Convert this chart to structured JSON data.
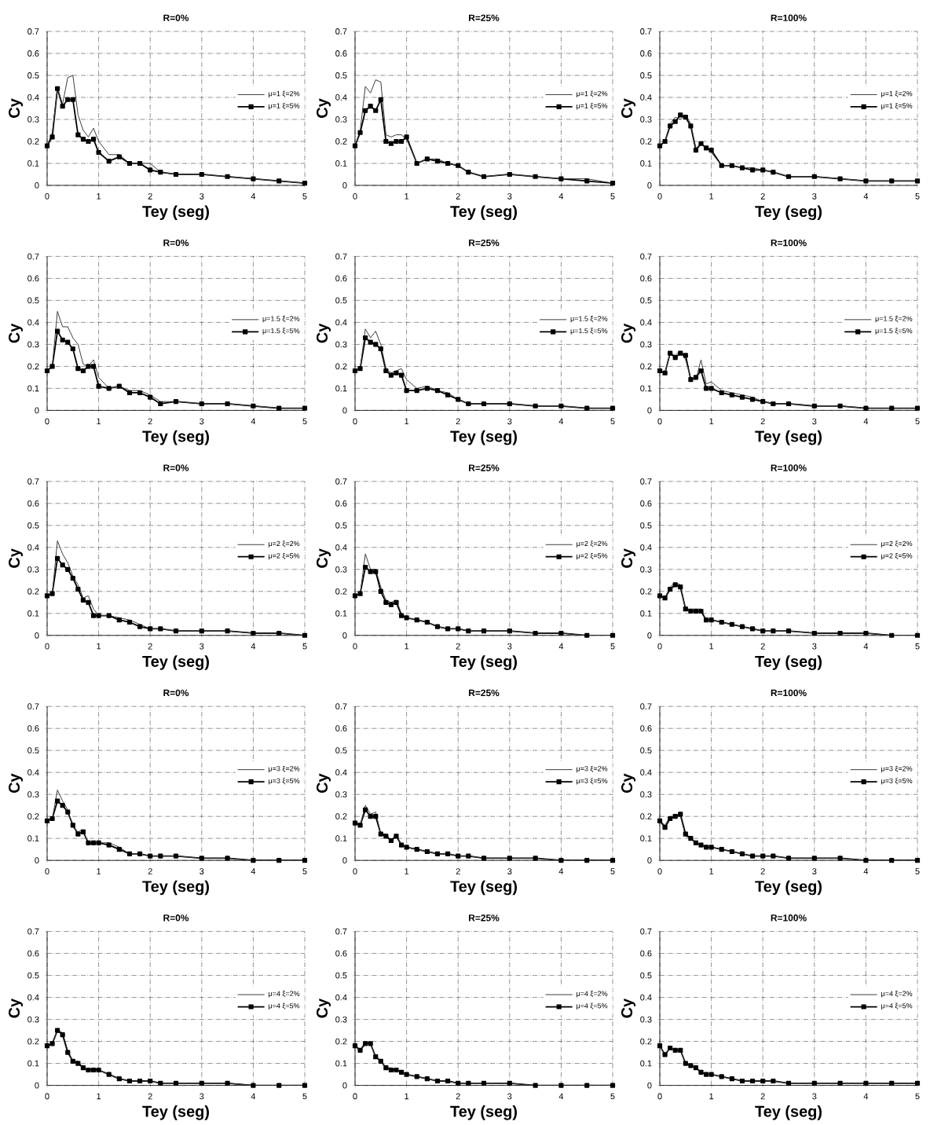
{
  "chart_data": [
    {
      "type": "line",
      "title": "R=0%",
      "xlabel": "Tey (seg)",
      "ylabel": "Cy",
      "xlim": [
        0,
        5
      ],
      "ylim": [
        0,
        0.7
      ],
      "xticks": [
        0,
        1,
        2,
        3,
        4,
        5
      ],
      "yticks": [
        0,
        0.1,
        0.2,
        0.3,
        0.4,
        0.5,
        0.6,
        0.7
      ],
      "grid": true,
      "legend": "right",
      "x": [
        0,
        0.1,
        0.2,
        0.3,
        0.4,
        0.5,
        0.6,
        0.7,
        0.8,
        0.9,
        1.0,
        1.2,
        1.4,
        1.6,
        1.8,
        2.0,
        2.2,
        2.5,
        3.0,
        3.5,
        4.0,
        4.5,
        5.0
      ],
      "series": [
        {
          "name": "μ=1 ξ=2%",
          "color": "#3c3c3c",
          "marker": "none",
          "values": [
            0.18,
            0.24,
            0.44,
            0.37,
            0.49,
            0.5,
            0.32,
            0.25,
            0.22,
            0.26,
            0.2,
            0.14,
            0.14,
            0.1,
            0.1,
            0.1,
            0.06,
            0.05,
            0.05,
            0.04,
            0.03,
            0.02,
            0.01
          ]
        },
        {
          "name": "μ=1 ξ=5%",
          "color": "#000000",
          "marker": "square",
          "values": [
            0.18,
            0.22,
            0.44,
            0.36,
            0.39,
            0.39,
            0.23,
            0.21,
            0.2,
            0.21,
            0.15,
            0.11,
            0.13,
            0.1,
            0.1,
            0.07,
            0.06,
            0.05,
            0.05,
            0.04,
            0.03,
            0.02,
            0.01
          ]
        }
      ]
    },
    {
      "type": "line",
      "title": "R=25%",
      "xlabel": "Tey (seg)",
      "ylabel": "Cy",
      "xlim": [
        0,
        5
      ],
      "ylim": [
        0,
        0.7
      ],
      "xticks": [
        0,
        1,
        2,
        3,
        4,
        5
      ],
      "yticks": [
        0,
        0.1,
        0.2,
        0.3,
        0.4,
        0.5,
        0.6,
        0.7
      ],
      "grid": true,
      "legend": "right",
      "x": [
        0,
        0.1,
        0.2,
        0.3,
        0.4,
        0.5,
        0.6,
        0.7,
        0.8,
        0.9,
        1.0,
        1.2,
        1.4,
        1.6,
        1.8,
        2.0,
        2.2,
        2.5,
        3.0,
        3.5,
        4.0,
        4.5,
        5.0
      ],
      "series": [
        {
          "name": "μ=1 ξ=2%",
          "color": "#3c3c3c",
          "marker": "none",
          "values": [
            0.18,
            0.25,
            0.45,
            0.42,
            0.48,
            0.47,
            0.23,
            0.22,
            0.23,
            0.23,
            0.21,
            0.1,
            0.12,
            0.12,
            0.1,
            0.09,
            0.06,
            0.04,
            0.05,
            0.04,
            0.03,
            0.03,
            0.01
          ]
        },
        {
          "name": "μ=1 ξ=5%",
          "color": "#000000",
          "marker": "square",
          "values": [
            0.18,
            0.24,
            0.34,
            0.36,
            0.34,
            0.39,
            0.2,
            0.19,
            0.2,
            0.2,
            0.22,
            0.1,
            0.12,
            0.11,
            0.1,
            0.09,
            0.06,
            0.04,
            0.05,
            0.04,
            0.03,
            0.02,
            0.01
          ]
        }
      ]
    },
    {
      "type": "line",
      "title": "R=100%",
      "xlabel": "Tey (seg)",
      "ylabel": "Cy",
      "xlim": [
        0,
        5
      ],
      "ylim": [
        0,
        0.7
      ],
      "xticks": [
        0,
        1,
        2,
        3,
        4,
        5
      ],
      "yticks": [
        0,
        0.1,
        0.2,
        0.3,
        0.4,
        0.5,
        0.6,
        0.7
      ],
      "grid": true,
      "legend": "right",
      "x": [
        0,
        0.1,
        0.2,
        0.3,
        0.4,
        0.5,
        0.6,
        0.7,
        0.8,
        0.9,
        1.0,
        1.2,
        1.4,
        1.6,
        1.8,
        2.0,
        2.2,
        2.5,
        3.0,
        3.5,
        4.0,
        4.5,
        5.0
      ],
      "series": [
        {
          "name": "μ=1 ξ=2%",
          "color": "#3c3c3c",
          "marker": "none",
          "values": [
            0.18,
            0.2,
            0.28,
            0.31,
            0.3,
            0.32,
            0.28,
            0.17,
            0.19,
            0.17,
            0.15,
            0.09,
            0.09,
            0.08,
            0.08,
            0.07,
            0.06,
            0.04,
            0.04,
            0.03,
            0.02,
            0.02,
            0.02
          ]
        },
        {
          "name": "μ=1 ξ=5%",
          "color": "#000000",
          "marker": "square",
          "values": [
            0.18,
            0.2,
            0.27,
            0.29,
            0.32,
            0.31,
            0.27,
            0.16,
            0.19,
            0.17,
            0.16,
            0.09,
            0.09,
            0.08,
            0.07,
            0.07,
            0.06,
            0.04,
            0.04,
            0.03,
            0.02,
            0.02,
            0.02
          ]
        }
      ]
    },
    {
      "type": "line",
      "title": "R=0%",
      "xlabel": "Tey (seg)",
      "ylabel": "Cy",
      "xlim": [
        0,
        5
      ],
      "ylim": [
        0,
        0.7
      ],
      "xticks": [
        0,
        1,
        2,
        3,
        4,
        5
      ],
      "yticks": [
        0,
        0.1,
        0.2,
        0.3,
        0.4,
        0.5,
        0.6,
        0.7
      ],
      "grid": true,
      "legend": "right",
      "x": [
        0,
        0.1,
        0.2,
        0.3,
        0.4,
        0.5,
        0.6,
        0.7,
        0.8,
        0.9,
        1.0,
        1.2,
        1.4,
        1.6,
        1.8,
        2.0,
        2.2,
        2.5,
        3.0,
        3.5,
        4.0,
        4.5,
        5.0
      ],
      "series": [
        {
          "name": "μ=1.5 ξ=2%",
          "color": "#3c3c3c",
          "marker": "none",
          "values": [
            0.18,
            0.2,
            0.45,
            0.38,
            0.38,
            0.33,
            0.3,
            0.21,
            0.2,
            0.23,
            0.15,
            0.1,
            0.11,
            0.09,
            0.09,
            0.07,
            0.04,
            0.04,
            0.03,
            0.03,
            0.02,
            0.01,
            0.01
          ]
        },
        {
          "name": "μ=1.5 ξ=5%",
          "color": "#000000",
          "marker": "square",
          "values": [
            0.18,
            0.2,
            0.36,
            0.32,
            0.31,
            0.28,
            0.19,
            0.18,
            0.2,
            0.2,
            0.11,
            0.1,
            0.11,
            0.08,
            0.08,
            0.06,
            0.03,
            0.04,
            0.03,
            0.03,
            0.02,
            0.01,
            0.01
          ]
        }
      ]
    },
    {
      "type": "line",
      "title": "R=25%",
      "xlabel": "Tey (seg)",
      "ylabel": "Cy",
      "xlim": [
        0,
        5
      ],
      "ylim": [
        0,
        0.7
      ],
      "xticks": [
        0,
        1,
        2,
        3,
        4,
        5
      ],
      "yticks": [
        0,
        0.1,
        0.2,
        0.3,
        0.4,
        0.5,
        0.6,
        0.7
      ],
      "grid": true,
      "legend": "right",
      "x": [
        0,
        0.1,
        0.2,
        0.3,
        0.4,
        0.5,
        0.6,
        0.7,
        0.8,
        0.9,
        1.0,
        1.2,
        1.4,
        1.6,
        1.8,
        2.0,
        2.2,
        2.5,
        3.0,
        3.5,
        4.0,
        4.5,
        5.0
      ],
      "series": [
        {
          "name": "μ=1.5 ξ=2%",
          "color": "#3c3c3c",
          "marker": "none",
          "values": [
            0.18,
            0.19,
            0.37,
            0.33,
            0.36,
            0.3,
            0.19,
            0.17,
            0.18,
            0.19,
            0.14,
            0.1,
            0.11,
            0.09,
            0.08,
            0.05,
            0.03,
            0.03,
            0.03,
            0.02,
            0.02,
            0.01,
            0.01
          ]
        },
        {
          "name": "μ=1.5 ξ=5%",
          "color": "#000000",
          "marker": "square",
          "values": [
            0.18,
            0.19,
            0.33,
            0.31,
            0.3,
            0.28,
            0.18,
            0.16,
            0.17,
            0.16,
            0.09,
            0.09,
            0.1,
            0.09,
            0.07,
            0.05,
            0.03,
            0.03,
            0.03,
            0.02,
            0.02,
            0.01,
            0.01
          ]
        }
      ]
    },
    {
      "type": "line",
      "title": "R=100%",
      "xlabel": "Tey (seg)",
      "ylabel": "Cy",
      "xlim": [
        0,
        5
      ],
      "ylim": [
        0,
        0.7
      ],
      "xticks": [
        0,
        1,
        2,
        3,
        4,
        5
      ],
      "yticks": [
        0,
        0.1,
        0.2,
        0.3,
        0.4,
        0.5,
        0.6,
        0.7
      ],
      "grid": true,
      "legend": "right",
      "x": [
        0,
        0.1,
        0.2,
        0.3,
        0.4,
        0.5,
        0.6,
        0.7,
        0.8,
        0.9,
        1.0,
        1.2,
        1.4,
        1.6,
        1.8,
        2.0,
        2.2,
        2.5,
        3.0,
        3.5,
        4.0,
        4.5,
        5.0
      ],
      "series": [
        {
          "name": "μ=1.5 ξ=2%",
          "color": "#3c3c3c",
          "marker": "none",
          "values": [
            0.18,
            0.17,
            0.26,
            0.25,
            0.27,
            0.23,
            0.15,
            0.14,
            0.23,
            0.12,
            0.13,
            0.09,
            0.08,
            0.07,
            0.06,
            0.04,
            0.03,
            0.03,
            0.02,
            0.02,
            0.01,
            0.01,
            0.01
          ]
        },
        {
          "name": "μ=1.5 ξ=5%",
          "color": "#000000",
          "marker": "square",
          "values": [
            0.18,
            0.17,
            0.26,
            0.24,
            0.26,
            0.25,
            0.14,
            0.15,
            0.18,
            0.1,
            0.1,
            0.08,
            0.07,
            0.06,
            0.05,
            0.04,
            0.03,
            0.03,
            0.02,
            0.02,
            0.01,
            0.01,
            0.01
          ]
        }
      ]
    },
    {
      "type": "line",
      "title": "R=0%",
      "xlabel": "Tey (seg)",
      "ylabel": "Cy",
      "xlim": [
        0,
        5
      ],
      "ylim": [
        0,
        0.7
      ],
      "xticks": [
        0,
        1,
        2,
        3,
        4,
        5
      ],
      "yticks": [
        0,
        0.1,
        0.2,
        0.3,
        0.4,
        0.5,
        0.6,
        0.7
      ],
      "grid": true,
      "legend": "right",
      "x": [
        0,
        0.1,
        0.2,
        0.3,
        0.4,
        0.5,
        0.6,
        0.7,
        0.8,
        0.9,
        1.0,
        1.2,
        1.4,
        1.6,
        1.8,
        2.0,
        2.2,
        2.5,
        3.0,
        3.5,
        4.0,
        4.5,
        5.0
      ],
      "series": [
        {
          "name": "μ=2 ξ=2%",
          "color": "#3c3c3c",
          "marker": "none",
          "values": [
            0.18,
            0.19,
            0.43,
            0.37,
            0.33,
            0.27,
            0.23,
            0.17,
            0.18,
            0.12,
            0.09,
            0.09,
            0.08,
            0.07,
            0.05,
            0.03,
            0.03,
            0.02,
            0.02,
            0.02,
            0.01,
            0.01,
            0.0
          ]
        },
        {
          "name": "μ=2 ξ=5%",
          "color": "#000000",
          "marker": "square",
          "values": [
            0.18,
            0.19,
            0.35,
            0.32,
            0.3,
            0.26,
            0.21,
            0.16,
            0.15,
            0.09,
            0.09,
            0.09,
            0.07,
            0.06,
            0.04,
            0.03,
            0.03,
            0.02,
            0.02,
            0.02,
            0.01,
            0.01,
            0.0
          ]
        }
      ]
    },
    {
      "type": "line",
      "title": "R=25%",
      "xlabel": "Tey (seg)",
      "ylabel": "Cy",
      "xlim": [
        0,
        5
      ],
      "ylim": [
        0,
        0.7
      ],
      "xticks": [
        0,
        1,
        2,
        3,
        4,
        5
      ],
      "yticks": [
        0,
        0.1,
        0.2,
        0.3,
        0.4,
        0.5,
        0.6,
        0.7
      ],
      "grid": true,
      "legend": "right",
      "x": [
        0,
        0.1,
        0.2,
        0.3,
        0.4,
        0.5,
        0.6,
        0.7,
        0.8,
        0.9,
        1.0,
        1.2,
        1.4,
        1.6,
        1.8,
        2.0,
        2.2,
        2.5,
        3.0,
        3.5,
        4.0,
        4.5,
        5.0
      ],
      "series": [
        {
          "name": "μ=2 ξ=2%",
          "color": "#3c3c3c",
          "marker": "none",
          "values": [
            0.18,
            0.19,
            0.37,
            0.3,
            0.3,
            0.22,
            0.16,
            0.15,
            0.16,
            0.1,
            0.08,
            0.07,
            0.06,
            0.04,
            0.03,
            0.03,
            0.02,
            0.02,
            0.02,
            0.01,
            0.01,
            0.0,
            0.0
          ]
        },
        {
          "name": "μ=2 ξ=5%",
          "color": "#000000",
          "marker": "square",
          "values": [
            0.18,
            0.19,
            0.31,
            0.29,
            0.29,
            0.2,
            0.15,
            0.14,
            0.15,
            0.09,
            0.08,
            0.07,
            0.06,
            0.04,
            0.03,
            0.03,
            0.02,
            0.02,
            0.02,
            0.01,
            0.01,
            0.0,
            0.0
          ]
        }
      ]
    },
    {
      "type": "line",
      "title": "R=100%",
      "xlabel": "Tey (seg)",
      "ylabel": "Cy",
      "xlim": [
        0,
        5
      ],
      "ylim": [
        0,
        0.7
      ],
      "xticks": [
        0,
        1,
        2,
        3,
        4,
        5
      ],
      "yticks": [
        0,
        0.1,
        0.2,
        0.3,
        0.4,
        0.5,
        0.6,
        0.7
      ],
      "grid": true,
      "legend": "right",
      "x": [
        0,
        0.1,
        0.2,
        0.3,
        0.4,
        0.5,
        0.6,
        0.7,
        0.8,
        0.9,
        1.0,
        1.2,
        1.4,
        1.6,
        1.8,
        2.0,
        2.2,
        2.5,
        3.0,
        3.5,
        4.0,
        4.5,
        5.0
      ],
      "series": [
        {
          "name": "μ=2 ξ=2%",
          "color": "#3c3c3c",
          "marker": "none",
          "values": [
            0.18,
            0.17,
            0.22,
            0.24,
            0.23,
            0.12,
            0.12,
            0.12,
            0.12,
            0.07,
            0.07,
            0.06,
            0.05,
            0.04,
            0.03,
            0.02,
            0.02,
            0.02,
            0.01,
            0.01,
            0.01,
            0.0,
            0.0
          ]
        },
        {
          "name": "μ=2 ξ=5%",
          "color": "#000000",
          "marker": "square",
          "values": [
            0.18,
            0.17,
            0.21,
            0.23,
            0.22,
            0.12,
            0.11,
            0.11,
            0.11,
            0.07,
            0.07,
            0.06,
            0.05,
            0.04,
            0.03,
            0.02,
            0.02,
            0.02,
            0.01,
            0.01,
            0.01,
            0.0,
            0.0
          ]
        }
      ]
    },
    {
      "type": "line",
      "title": "R=0%",
      "xlabel": "Tey (seg)",
      "ylabel": "Cy",
      "xlim": [
        0,
        5
      ],
      "ylim": [
        0,
        0.7
      ],
      "xticks": [
        0,
        1,
        2,
        3,
        4,
        5
      ],
      "yticks": [
        0,
        0.1,
        0.2,
        0.3,
        0.4,
        0.5,
        0.6,
        0.7
      ],
      "grid": true,
      "legend": "right",
      "x": [
        0,
        0.1,
        0.2,
        0.3,
        0.4,
        0.5,
        0.6,
        0.7,
        0.8,
        0.9,
        1.0,
        1.2,
        1.4,
        1.6,
        1.8,
        2.0,
        2.2,
        2.5,
        3.0,
        3.5,
        4.0,
        4.5,
        5.0
      ],
      "series": [
        {
          "name": "μ=3 ξ=2%",
          "color": "#3c3c3c",
          "marker": "none",
          "values": [
            0.18,
            0.19,
            0.32,
            0.27,
            0.23,
            0.15,
            0.13,
            0.14,
            0.07,
            0.08,
            0.08,
            0.08,
            0.06,
            0.03,
            0.03,
            0.02,
            0.02,
            0.02,
            0.01,
            0.01,
            0.0,
            0.0,
            0.0
          ]
        },
        {
          "name": "μ=3 ξ=5%",
          "color": "#000000",
          "marker": "square",
          "values": [
            0.18,
            0.19,
            0.27,
            0.25,
            0.22,
            0.16,
            0.12,
            0.13,
            0.08,
            0.08,
            0.08,
            0.07,
            0.05,
            0.03,
            0.03,
            0.02,
            0.02,
            0.02,
            0.01,
            0.01,
            0.0,
            0.0,
            0.0
          ]
        }
      ]
    },
    {
      "type": "line",
      "title": "R=25%",
      "xlabel": "Tey (seg)",
      "ylabel": "Cy",
      "xlim": [
        0,
        5
      ],
      "ylim": [
        0,
        0.7
      ],
      "xticks": [
        0,
        1,
        2,
        3,
        4,
        5
      ],
      "yticks": [
        0,
        0.1,
        0.2,
        0.3,
        0.4,
        0.5,
        0.6,
        0.7
      ],
      "grid": true,
      "legend": "right",
      "x": [
        0,
        0.1,
        0.2,
        0.3,
        0.4,
        0.5,
        0.6,
        0.7,
        0.8,
        0.9,
        1.0,
        1.2,
        1.4,
        1.6,
        1.8,
        2.0,
        2.2,
        2.5,
        3.0,
        3.5,
        4.0,
        4.5,
        5.0
      ],
      "series": [
        {
          "name": "μ=3 ξ=2%",
          "color": "#3c3c3c",
          "marker": "none",
          "values": [
            0.18,
            0.16,
            0.25,
            0.21,
            0.22,
            0.12,
            0.12,
            0.09,
            0.12,
            0.07,
            0.06,
            0.05,
            0.04,
            0.03,
            0.03,
            0.02,
            0.02,
            0.01,
            0.01,
            0.01,
            0.0,
            0.0,
            0.0
          ]
        },
        {
          "name": "μ=3 ξ=5%",
          "color": "#000000",
          "marker": "square",
          "values": [
            0.17,
            0.16,
            0.23,
            0.2,
            0.2,
            0.12,
            0.11,
            0.09,
            0.11,
            0.07,
            0.06,
            0.05,
            0.04,
            0.03,
            0.03,
            0.02,
            0.02,
            0.01,
            0.01,
            0.01,
            0.0,
            0.0,
            0.0
          ]
        }
      ]
    },
    {
      "type": "line",
      "title": "R=100%",
      "xlabel": "Tey (seg)",
      "ylabel": "Cy",
      "xlim": [
        0,
        5
      ],
      "ylim": [
        0,
        0.7
      ],
      "xticks": [
        0,
        1,
        2,
        3,
        4,
        5
      ],
      "yticks": [
        0,
        0.1,
        0.2,
        0.3,
        0.4,
        0.5,
        0.6,
        0.7
      ],
      "grid": true,
      "legend": "right",
      "x": [
        0,
        0.1,
        0.2,
        0.3,
        0.4,
        0.5,
        0.6,
        0.7,
        0.8,
        0.9,
        1.0,
        1.2,
        1.4,
        1.6,
        1.8,
        2.0,
        2.2,
        2.5,
        3.0,
        3.5,
        4.0,
        4.5,
        5.0
      ],
      "series": [
        {
          "name": "μ=3 ξ=2%",
          "color": "#3c3c3c",
          "marker": "none",
          "values": [
            0.18,
            0.16,
            0.2,
            0.2,
            0.2,
            0.11,
            0.1,
            0.08,
            0.07,
            0.06,
            0.06,
            0.05,
            0.04,
            0.03,
            0.02,
            0.02,
            0.02,
            0.01,
            0.01,
            0.01,
            0.0,
            0.0,
            0.0
          ]
        },
        {
          "name": "μ=3 ξ=5%",
          "color": "#000000",
          "marker": "square",
          "values": [
            0.18,
            0.15,
            0.19,
            0.2,
            0.21,
            0.12,
            0.1,
            0.08,
            0.07,
            0.06,
            0.06,
            0.05,
            0.04,
            0.03,
            0.02,
            0.02,
            0.02,
            0.01,
            0.01,
            0.01,
            0.0,
            0.0,
            0.0
          ]
        }
      ]
    },
    {
      "type": "line",
      "title": "R=0%",
      "xlabel": "Tey (seg)",
      "ylabel": "Cy",
      "xlim": [
        0,
        5
      ],
      "ylim": [
        0,
        0.7
      ],
      "xticks": [
        0,
        1,
        2,
        3,
        4,
        5
      ],
      "yticks": [
        0,
        0.1,
        0.2,
        0.3,
        0.4,
        0.5,
        0.6,
        0.7
      ],
      "grid": true,
      "legend": "right",
      "x": [
        0,
        0.1,
        0.2,
        0.3,
        0.4,
        0.5,
        0.6,
        0.7,
        0.8,
        0.9,
        1.0,
        1.2,
        1.4,
        1.6,
        1.8,
        2.0,
        2.2,
        2.5,
        3.0,
        3.5,
        4.0,
        4.5,
        5.0
      ],
      "series": [
        {
          "name": "μ=4 ξ=2%",
          "color": "#3c3c3c",
          "marker": "none",
          "values": [
            0.18,
            0.19,
            0.25,
            0.24,
            0.16,
            0.11,
            0.11,
            0.08,
            0.07,
            0.08,
            0.07,
            0.05,
            0.03,
            0.02,
            0.02,
            0.02,
            0.01,
            0.01,
            0.01,
            0.01,
            0.0,
            0.0,
            0.0
          ]
        },
        {
          "name": "μ=4 ξ=5%",
          "color": "#000000",
          "marker": "square",
          "values": [
            0.18,
            0.19,
            0.25,
            0.23,
            0.15,
            0.11,
            0.1,
            0.08,
            0.07,
            0.07,
            0.07,
            0.05,
            0.03,
            0.02,
            0.02,
            0.02,
            0.01,
            0.01,
            0.01,
            0.01,
            0.0,
            0.0,
            0.0
          ]
        }
      ]
    },
    {
      "type": "line",
      "title": "R=25%",
      "xlabel": "Tey (seg)",
      "ylabel": "Cy",
      "xlim": [
        0,
        5
      ],
      "ylim": [
        0,
        0.7
      ],
      "xticks": [
        0,
        1,
        2,
        3,
        4,
        5
      ],
      "yticks": [
        0,
        0.1,
        0.2,
        0.3,
        0.4,
        0.5,
        0.6,
        0.7
      ],
      "grid": true,
      "legend": "right",
      "x": [
        0,
        0.1,
        0.2,
        0.3,
        0.4,
        0.5,
        0.6,
        0.7,
        0.8,
        0.9,
        1.0,
        1.2,
        1.4,
        1.6,
        1.8,
        2.0,
        2.2,
        2.5,
        3.0,
        3.5,
        4.0,
        4.5,
        5.0
      ],
      "series": [
        {
          "name": "μ=4 ξ=2%",
          "color": "#3c3c3c",
          "marker": "none",
          "values": [
            0.18,
            0.16,
            0.2,
            0.19,
            0.13,
            0.11,
            0.08,
            0.08,
            0.07,
            0.06,
            0.05,
            0.04,
            0.03,
            0.02,
            0.02,
            0.01,
            0.01,
            0.01,
            0.01,
            0.0,
            0.0,
            0.0,
            0.0
          ]
        },
        {
          "name": "μ=4 ξ=5%",
          "color": "#000000",
          "marker": "square",
          "values": [
            0.18,
            0.16,
            0.19,
            0.19,
            0.13,
            0.11,
            0.08,
            0.07,
            0.07,
            0.06,
            0.05,
            0.04,
            0.03,
            0.02,
            0.02,
            0.01,
            0.01,
            0.01,
            0.01,
            0.0,
            0.0,
            0.0,
            0.0
          ]
        }
      ]
    },
    {
      "type": "line",
      "title": "R=100%",
      "xlabel": "Tey (seg)",
      "ylabel": "Cy",
      "xlim": [
        0,
        5
      ],
      "ylim": [
        0,
        0.7
      ],
      "xticks": [
        0,
        1,
        2,
        3,
        4,
        5
      ],
      "yticks": [
        0,
        0.1,
        0.2,
        0.3,
        0.4,
        0.5,
        0.6,
        0.7
      ],
      "grid": true,
      "legend": "right",
      "x": [
        0,
        0.1,
        0.2,
        0.3,
        0.4,
        0.5,
        0.6,
        0.7,
        0.8,
        0.9,
        1.0,
        1.2,
        1.4,
        1.6,
        1.8,
        2.0,
        2.2,
        2.5,
        3.0,
        3.5,
        4.0,
        4.5,
        5.0
      ],
      "series": [
        {
          "name": "μ=4 ξ=2%",
          "color": "#3c3c3c",
          "marker": "none",
          "values": [
            0.18,
            0.14,
            0.17,
            0.16,
            0.16,
            0.1,
            0.09,
            0.08,
            0.06,
            0.05,
            0.05,
            0.04,
            0.03,
            0.02,
            0.02,
            0.02,
            0.02,
            0.01,
            0.01,
            0.01,
            0.01,
            0.01,
            0.01
          ]
        },
        {
          "name": "μ=4 ξ=5%",
          "color": "#000000",
          "marker": "square",
          "values": [
            0.18,
            0.14,
            0.17,
            0.16,
            0.16,
            0.1,
            0.09,
            0.08,
            0.06,
            0.05,
            0.05,
            0.04,
            0.03,
            0.02,
            0.02,
            0.02,
            0.02,
            0.01,
            0.01,
            0.01,
            0.01,
            0.01,
            0.01
          ]
        }
      ]
    }
  ]
}
